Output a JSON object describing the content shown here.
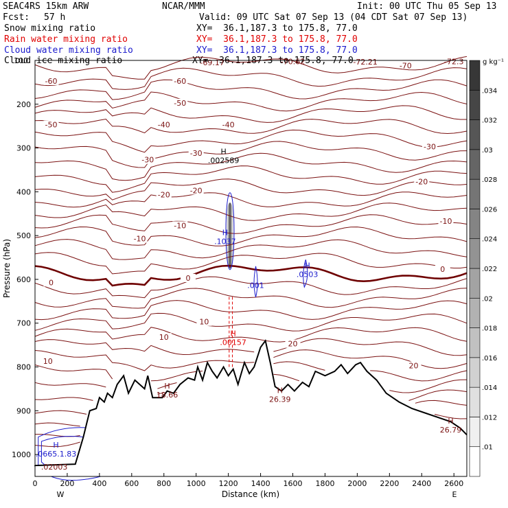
{
  "header": {
    "model": "SEAC4RS 15km ARW",
    "org": "NCAR/MMM",
    "init": "Init: 00 UTC Thu 05 Sep 13",
    "fcst_label": "Fcst:",
    "fcst_value": "57 h",
    "valid": "Valid: 09 UTC Sat 07 Sep 13 (04 CDT Sat 07 Sep 13)"
  },
  "fields": [
    {
      "name": "Snow mixing ratio",
      "xy": "XY=  36.1,187.3 to 175.8, 77.0",
      "color": "#000000"
    },
    {
      "name": "Rain water mixing ratio",
      "xy": "XY=  36.1,187.3 to 175.8, 77.0",
      "color": "#e00000"
    },
    {
      "name": "Cloud water mixing ratio",
      "xy": "XY=  36.1,187.3 to 175.8, 77.0",
      "color": "#1a1acc"
    },
    {
      "name": "Cloud ice mixing ratio",
      "xy": "XY=  36.1,187.3 to 175.8, 77.0",
      "color": "#000000"
    }
  ],
  "colors": {
    "temperature": "#7a1010",
    "freezing": "#6e0000",
    "rain": "#e00000",
    "cloud": "#1a1acc",
    "terrain": "#000000"
  },
  "chart_data": {
    "type": "cross-section",
    "xlabel": "Distance (km)",
    "ylabel": "Pressure (hPa)",
    "xlim": [
      0,
      2680
    ],
    "ylim": [
      1050,
      100
    ],
    "x_ticks": [
      0,
      200,
      400,
      600,
      800,
      1000,
      1200,
      1400,
      1600,
      1800,
      2000,
      2200,
      2400,
      2600
    ],
    "y_ticks": [
      200,
      300,
      400,
      500,
      600,
      700,
      800,
      900,
      1000
    ],
    "y_tick_top": "100",
    "end_labels": {
      "west": "W",
      "east": "E"
    },
    "colorbar": {
      "units": "g kg⁻¹",
      "ticks": [
        ".01",
        ".012",
        ".014",
        ".016",
        ".018",
        ".02",
        ".022",
        ".024",
        ".026",
        ".028",
        ".03",
        ".032",
        ".034"
      ]
    },
    "temperature_contours": [
      {
        "label": "-60",
        "x": 100,
        "p": 150
      },
      {
        "label": "-60",
        "x": 900,
        "p": 150
      },
      {
        "label": "-50",
        "x": 100,
        "p": 250
      },
      {
        "label": "-50",
        "x": 900,
        "p": 200
      },
      {
        "label": "-40",
        "x": 800,
        "p": 250
      },
      {
        "label": "-40",
        "x": 1200,
        "p": 250
      },
      {
        "label": "-30",
        "x": 700,
        "p": 330
      },
      {
        "label": "-30",
        "x": 1000,
        "p": 315
      },
      {
        "label": "-30",
        "x": 2450,
        "p": 300
      },
      {
        "label": "-20",
        "x": 800,
        "p": 410
      },
      {
        "label": "-20",
        "x": 1000,
        "p": 400
      },
      {
        "label": "-20",
        "x": 2400,
        "p": 380
      },
      {
        "label": "-10",
        "x": 650,
        "p": 510
      },
      {
        "label": "-10",
        "x": 900,
        "p": 480
      },
      {
        "label": "-10",
        "x": 2550,
        "p": 470
      },
      {
        "label": "0",
        "x": 100,
        "p": 610
      },
      {
        "label": "0",
        "x": 950,
        "p": 600
      },
      {
        "label": "0",
        "x": 2530,
        "p": 580
      },
      {
        "label": "10",
        "x": 80,
        "p": 790
      },
      {
        "label": "10",
        "x": 800,
        "p": 735
      },
      {
        "label": "10",
        "x": 1050,
        "p": 700
      },
      {
        "label": "20",
        "x": 1600,
        "p": 750
      },
      {
        "label": "20",
        "x": 2350,
        "p": 800
      }
    ],
    "top_labels": [
      {
        "label": "-69.17",
        "x": 1100,
        "p": 105
      },
      {
        "label": "-70.62",
        "x": 1600,
        "p": 102
      },
      {
        "label": "-72.21",
        "x": 2050,
        "p": 103
      },
      {
        "label": "-70",
        "x": 2300,
        "p": 112
      },
      {
        "label": "-72.3",
        "x": 2600,
        "p": 102
      }
    ],
    "extrema": [
      {
        "label": ".002589",
        "mark": "H",
        "x": 1170,
        "p": 330,
        "color": "#000000"
      },
      {
        "label": ".1037",
        "mark": "H",
        "x": 1180,
        "p": 515,
        "color": "#1a1acc"
      },
      {
        "label": ".001",
        "mark": "",
        "x": 1370,
        "p": 615,
        "color": "#1a1acc"
      },
      {
        "label": ".0503",
        "mark": "H",
        "x": 1690,
        "p": 590,
        "color": "#1a1acc"
      },
      {
        "label": ".00157",
        "mark": "H",
        "x": 1230,
        "p": 745,
        "color": "#e00000"
      },
      {
        "label": "18.66",
        "mark": "H",
        "x": 820,
        "p": 865,
        "color": "#7a1010"
      },
      {
        "label": "26.39",
        "mark": "H",
        "x": 1520,
        "p": 875,
        "color": "#7a1010"
      },
      {
        "label": "26.79",
        "mark": "H",
        "x": 2580,
        "p": 945,
        "color": "#7a1010"
      },
      {
        "label": ".0665.1.83",
        "mark": "H",
        "x": 130,
        "p": 1000,
        "color": "#1a1acc"
      },
      {
        "label": ".02003",
        "mark": "",
        "x": 120,
        "p": 1030,
        "color": "#7a1010"
      }
    ],
    "terrain": [
      [
        0,
        1025
      ],
      [
        250,
        1022
      ],
      [
        300,
        960
      ],
      [
        340,
        900
      ],
      [
        380,
        895
      ],
      [
        400,
        870
      ],
      [
        430,
        880
      ],
      [
        450,
        860
      ],
      [
        480,
        870
      ],
      [
        510,
        840
      ],
      [
        550,
        820
      ],
      [
        580,
        860
      ],
      [
        620,
        830
      ],
      [
        680,
        850
      ],
      [
        700,
        820
      ],
      [
        730,
        870
      ],
      [
        790,
        870
      ],
      [
        820,
        855
      ],
      [
        860,
        860
      ],
      [
        900,
        840
      ],
      [
        950,
        825
      ],
      [
        990,
        830
      ],
      [
        1010,
        800
      ],
      [
        1040,
        830
      ],
      [
        1070,
        790
      ],
      [
        1100,
        810
      ],
      [
        1130,
        825
      ],
      [
        1170,
        800
      ],
      [
        1200,
        820
      ],
      [
        1230,
        805
      ],
      [
        1260,
        840
      ],
      [
        1300,
        790
      ],
      [
        1330,
        815
      ],
      [
        1360,
        800
      ],
      [
        1400,
        755
      ],
      [
        1430,
        740
      ],
      [
        1460,
        790
      ],
      [
        1490,
        845
      ],
      [
        1530,
        855
      ],
      [
        1570,
        840
      ],
      [
        1610,
        855
      ],
      [
        1660,
        835
      ],
      [
        1700,
        845
      ],
      [
        1740,
        810
      ],
      [
        1800,
        820
      ],
      [
        1860,
        810
      ],
      [
        1900,
        795
      ],
      [
        1940,
        815
      ],
      [
        1990,
        795
      ],
      [
        2020,
        790
      ],
      [
        2060,
        810
      ],
      [
        2120,
        830
      ],
      [
        2180,
        860
      ],
      [
        2260,
        880
      ],
      [
        2340,
        895
      ],
      [
        2420,
        905
      ],
      [
        2500,
        915
      ],
      [
        2580,
        925
      ],
      [
        2640,
        940
      ],
      [
        2680,
        955
      ]
    ]
  }
}
